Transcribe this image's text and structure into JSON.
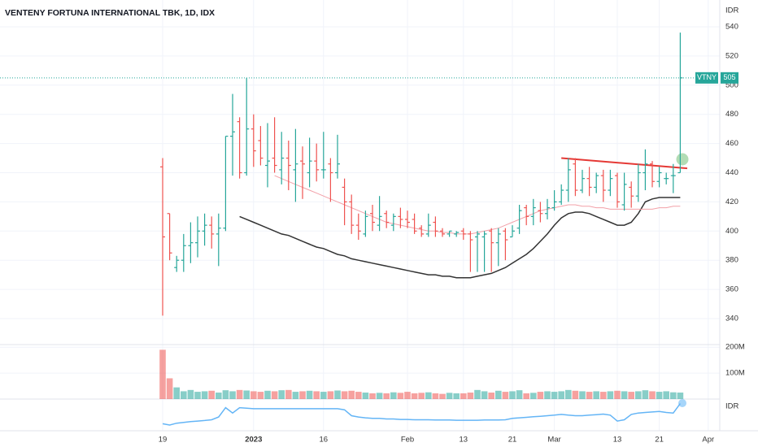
{
  "chart_data": {
    "type": "ohlc",
    "title": "VENTENY FORTUNA INTERNATIONAL TBK, 1D, IDX",
    "currency": "IDR",
    "symbol": "VTNY",
    "last_price": 505,
    "ylim": [
      330,
      550
    ],
    "yticks": [
      340,
      360,
      380,
      400,
      420,
      440,
      460,
      480,
      500,
      520,
      540
    ],
    "up_color": "#26a69a",
    "down_color": "#ef5350",
    "categories": [
      "19",
      null,
      null,
      null,
      null,
      null,
      null,
      null,
      null,
      null,
      null,
      null,
      null,
      "2023",
      null,
      null,
      null,
      null,
      null,
      null,
      null,
      null,
      null,
      "16",
      null,
      null,
      null,
      null,
      null,
      null,
      null,
      null,
      null,
      null,
      null,
      "Feb",
      null,
      null,
      null,
      null,
      null,
      null,
      null,
      "13",
      null,
      null,
      null,
      null,
      null,
      null,
      "21",
      null,
      null,
      null,
      null,
      null,
      "Mar",
      null,
      null,
      null,
      null,
      null,
      null,
      null,
      null,
      "13",
      null,
      null,
      null,
      null,
      null,
      "21",
      null,
      null,
      null,
      null,
      null,
      null,
      "Apr"
    ],
    "candles": [
      [
        444,
        450,
        342,
        396
      ],
      [
        412,
        412,
        380,
        385
      ],
      [
        375,
        383,
        372,
        380
      ],
      [
        380,
        398,
        372,
        390
      ],
      [
        390,
        406,
        378,
        392
      ],
      [
        392,
        410,
        382,
        400
      ],
      [
        400,
        412,
        390,
        404
      ],
      [
        404,
        410,
        388,
        398
      ],
      [
        398,
        412,
        376,
        402
      ],
      [
        402,
        465,
        400,
        465
      ],
      [
        465,
        494,
        438,
        468
      ],
      [
        475,
        478,
        436,
        440
      ],
      [
        440,
        505,
        438,
        470
      ],
      [
        470,
        480,
        444,
        455
      ],
      [
        462,
        472,
        445,
        450
      ],
      [
        445,
        474,
        430,
        448
      ],
      [
        450,
        478,
        440,
        445
      ],
      [
        442,
        468,
        432,
        450
      ],
      [
        450,
        462,
        428,
        445
      ],
      [
        442,
        470,
        420,
        446
      ],
      [
        448,
        458,
        422,
        446
      ],
      [
        440,
        464,
        430,
        448
      ],
      [
        448,
        460,
        434,
        442
      ],
      [
        442,
        468,
        436,
        442
      ],
      [
        446,
        450,
        420,
        440
      ],
      [
        440,
        466,
        436,
        446
      ],
      [
        430,
        436,
        404,
        420
      ],
      [
        420,
        425,
        398,
        404
      ],
      [
        404,
        412,
        394,
        400
      ],
      [
        398,
        414,
        396,
        410
      ],
      [
        412,
        418,
        400,
        406
      ],
      [
        404,
        424,
        400,
        410
      ],
      [
        412,
        414,
        402,
        406
      ],
      [
        404,
        412,
        400,
        410
      ],
      [
        410,
        416,
        402,
        408
      ],
      [
        408,
        414,
        402,
        406
      ],
      [
        408,
        412,
        398,
        400
      ],
      [
        402,
        404,
        396,
        398
      ],
      [
        398,
        412,
        396,
        404
      ],
      [
        406,
        410,
        396,
        400
      ],
      [
        400,
        402,
        396,
        398
      ],
      [
        398,
        400,
        396,
        400
      ],
      [
        398,
        400,
        396,
        399
      ],
      [
        400,
        402,
        394,
        398
      ],
      [
        398,
        400,
        372,
        394
      ],
      [
        396,
        400,
        372,
        398
      ],
      [
        396,
        400,
        372,
        398
      ],
      [
        400,
        402,
        372,
        392
      ],
      [
        392,
        402,
        376,
        398
      ],
      [
        400,
        402,
        380,
        394
      ],
      [
        396,
        404,
        396,
        400
      ],
      [
        402,
        418,
        398,
        414
      ],
      [
        416,
        418,
        404,
        410
      ],
      [
        410,
        422,
        404,
        416
      ],
      [
        414,
        420,
        406,
        412
      ],
      [
        412,
        422,
        408,
        416
      ],
      [
        416,
        428,
        414,
        420
      ],
      [
        420,
        432,
        418,
        428
      ],
      [
        428,
        450,
        420,
        442
      ],
      [
        446,
        450,
        424,
        428
      ],
      [
        428,
        442,
        426,
        436
      ],
      [
        436,
        444,
        424,
        430
      ],
      [
        430,
        440,
        426,
        438
      ],
      [
        438,
        442,
        420,
        428
      ],
      [
        428,
        442,
        424,
        436
      ],
      [
        438,
        440,
        416,
        420
      ],
      [
        418,
        440,
        414,
        432
      ],
      [
        430,
        434,
        416,
        424
      ],
      [
        424,
        446,
        420,
        440
      ],
      [
        440,
        456,
        428,
        446
      ],
      [
        446,
        448,
        430,
        434
      ],
      [
        434,
        444,
        430,
        440
      ],
      [
        436,
        440,
        432,
        436
      ],
      [
        438,
        446,
        426,
        438
      ],
      [
        440,
        536,
        440,
        505
      ],
      null,
      null,
      null,
      null
    ],
    "volume": {
      "ylim": [
        0,
        210
      ],
      "yticks": [
        {
          "value": 100,
          "label": "100M"
        },
        {
          "value": 200,
          "label": "200M"
        }
      ],
      "values": [
        190,
        80,
        45,
        30,
        35,
        28,
        30,
        32,
        25,
        34,
        30,
        35,
        33,
        30,
        28,
        32,
        30,
        34,
        35,
        28,
        30,
        32,
        30,
        28,
        30,
        33,
        30,
        32,
        28,
        25,
        22,
        24,
        22,
        26,
        24,
        28,
        22,
        24,
        26,
        22,
        20,
        24,
        22,
        22,
        25,
        35,
        30,
        25,
        32,
        28,
        30,
        34,
        22,
        24,
        28,
        30,
        28,
        30,
        35,
        32,
        30,
        28,
        30,
        28,
        30,
        32,
        30,
        28,
        30,
        34,
        30,
        28,
        30,
        26,
        25,
        null,
        null,
        null,
        null
      ]
    },
    "series": [
      {
        "color": "#333333",
        "values": [
          null,
          null,
          null,
          null,
          null,
          null,
          null,
          null,
          null,
          null,
          null,
          410,
          408,
          406,
          404,
          402,
          400,
          398,
          397,
          395,
          393,
          391,
          389,
          388,
          386,
          384,
          383,
          381,
          380,
          379,
          378,
          377,
          376,
          375,
          374,
          373,
          372,
          371,
          370,
          370,
          369,
          369,
          368,
          368,
          368,
          369,
          370,
          371,
          373,
          375,
          378,
          381,
          384,
          388,
          393,
          398,
          404,
          409,
          412,
          413,
          413,
          412,
          410,
          408,
          406,
          404,
          404,
          406,
          412,
          420,
          422,
          423,
          423,
          423,
          423,
          null,
          null,
          null,
          null
        ]
      },
      {
        "color": "#f2a0a8",
        "values": [
          null,
          null,
          null,
          null,
          null,
          null,
          null,
          null,
          null,
          null,
          null,
          null,
          null,
          null,
          null,
          null,
          438,
          436,
          434,
          432,
          430,
          428,
          426,
          424,
          422,
          420,
          418,
          416,
          414,
          412,
          410,
          408,
          406,
          405,
          404,
          403,
          402,
          401,
          400,
          400,
          399,
          399,
          398,
          398,
          398,
          399,
          400,
          401,
          402,
          404,
          406,
          408,
          410,
          412,
          414,
          415,
          416,
          417,
          418,
          418,
          417,
          417,
          416,
          416,
          415,
          415,
          415,
          415,
          415,
          415,
          415,
          416,
          416,
          417,
          417,
          null,
          null,
          null,
          null
        ]
      }
    ],
    "trendline": {
      "color": "#e53935",
      "start": 450,
      "end": 443
    },
    "indicator": {
      "label": "IDR",
      "color": "#64b5f6",
      "ylim": [
        0,
        100
      ],
      "values": [
        20,
        15,
        22,
        25,
        28,
        30,
        32,
        35,
        45,
        80,
        60,
        80,
        78,
        76,
        76,
        76,
        76,
        76,
        76,
        76,
        76,
        76,
        76,
        76,
        76,
        76,
        72,
        50,
        45,
        42,
        40,
        40,
        38,
        38,
        36,
        36,
        35,
        35,
        35,
        34,
        34,
        34,
        33,
        33,
        33,
        33,
        34,
        34,
        34,
        35,
        40,
        42,
        44,
        46,
        48,
        50,
        52,
        55,
        52,
        50,
        50,
        52,
        54,
        56,
        52,
        30,
        35,
        55,
        60,
        62,
        64,
        66,
        62,
        60,
        95,
        null,
        null,
        null,
        null
      ]
    }
  }
}
